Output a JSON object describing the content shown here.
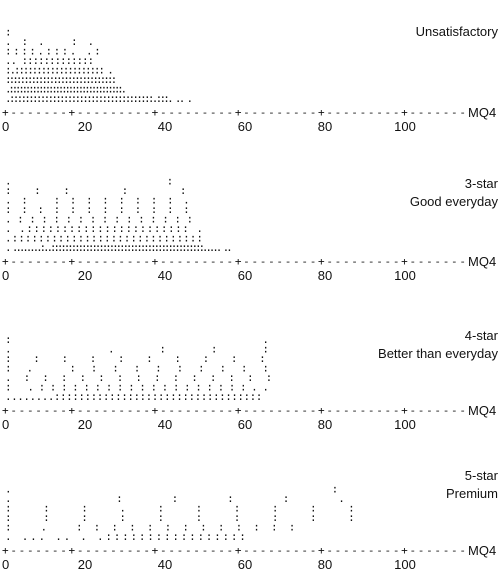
{
  "chart_data": {
    "type": "scatter",
    "x_axis": {
      "label": "MQ4",
      "ticks": [
        0,
        20,
        40,
        60,
        80,
        100
      ],
      "range": [
        0,
        115
      ]
    },
    "panels": [
      {
        "label": [
          "Unsatisfactory"
        ],
        "rows": [
          "                             :",
          "                  .:.    :.",
          "                 ::::.:::. .:",
          "          ..  :::::::::::::",
          "       :.::::::::::::::::::::   .",
          "    ::::::::::::::::::::::::::::::",
          " .::::::::::::::::::::::::::::::::::.",
          ".:::::::::::::::::::::::::::::::::::::.:::.   ..        ."
        ]
      },
      {
        "label": [
          "3-star",
          "Good everyday"
        ],
        "rows": [
          "                                                 .:",
          "                                               ::: :  :",
          "                                            .: ::::::::.",
          "                                            ::::::::::::",
          "                                         .:::::::::::::::",
          "                               . .:::::::::::::::::::::::  .",
          "                              .:::::::::::::::::::::::::::::",
          "  .  ........:..::::::::::::::::::::::::::::::::::::::::::::.....  .."
        ]
      },
      {
        "label": [
          "4-star",
          "Better than everyday"
        ],
        "rows": [
          "                                                                              :.",
          "                                                                         .  .:::",
          "                                                                     ::::::::::",
          "                                                                   :. ::::::::::",
          "                                                                  .::::::::::::::",
          "                                                       :  .:::::::::::::::::::..",
          "                                    ........::::::::::::::::::::::::::::::::::"
        ]
      },
      {
        "label": [
          "5-star",
          "Premium"
        ],
        "rows": [
          "                                                                                                   .:",
          "                                                                                                . ::::.",
          "                                                                                                :::.::::::",
          "                                                                                                ::::::::::",
          "                                                                      : .  :::::::::::::",
          "                                   .  ...        ..  . .:::::::::::::::::"
        ]
      }
    ]
  }
}
